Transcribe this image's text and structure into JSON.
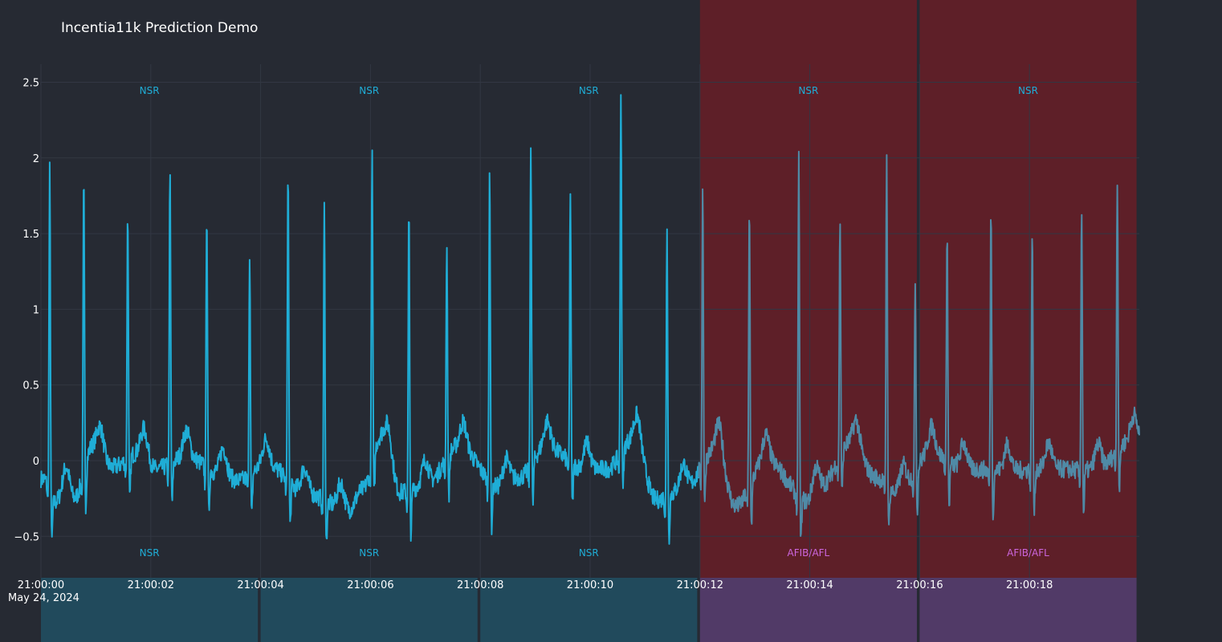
{
  "chart_data": {
    "type": "line",
    "title": "Incentia11k Prediction Demo",
    "xlabel": "",
    "ylabel": "",
    "x_range": [
      0,
      20
    ],
    "ylim": [
      -0.55,
      2.6
    ],
    "y_ticks": [
      {
        "value": -0.5,
        "label": "−0.5"
      },
      {
        "value": 0,
        "label": "0"
      },
      {
        "value": 0.5,
        "label": "0.5"
      },
      {
        "value": 1,
        "label": "1"
      },
      {
        "value": 1.5,
        "label": "1.5"
      },
      {
        "value": 2,
        "label": "2"
      },
      {
        "value": 2.5,
        "label": "2.5"
      }
    ],
    "x_ticks": [
      {
        "value": 0,
        "label": "21:00:00"
      },
      {
        "value": 2,
        "label": "21:00:02"
      },
      {
        "value": 4,
        "label": "21:00:04"
      },
      {
        "value": 6,
        "label": "21:00:06"
      },
      {
        "value": 8,
        "label": "21:00:08"
      },
      {
        "value": 10,
        "label": "21:00:10"
      },
      {
        "value": 12,
        "label": "21:00:12"
      },
      {
        "value": 14,
        "label": "21:00:14"
      },
      {
        "value": 16,
        "label": "21:00:16"
      },
      {
        "value": 18,
        "label": "21:00:18"
      }
    ],
    "x_date_label": "May 24, 2024",
    "grid": true,
    "segments": [
      {
        "start": 0,
        "end": 3.95,
        "top_label": "NSR",
        "bottom_label": "NSR",
        "bottom_alert": false,
        "shaded": false
      },
      {
        "start": 4.0,
        "end": 7.95,
        "top_label": "NSR",
        "bottom_label": "NSR",
        "bottom_alert": false,
        "shaded": false
      },
      {
        "start": 8.0,
        "end": 11.95,
        "top_label": "NSR",
        "bottom_label": "NSR",
        "bottom_alert": false,
        "shaded": false
      },
      {
        "start": 12.0,
        "end": 15.95,
        "top_label": "NSR",
        "bottom_label": "AFIB/AFL",
        "bottom_alert": true,
        "shaded": true
      },
      {
        "start": 16.0,
        "end": 19.95,
        "top_label": "NSR",
        "bottom_label": "AFIB/AFL",
        "bottom_alert": true,
        "shaded": true
      }
    ],
    "r_peaks": [
      {
        "t": 0.16,
        "amp": 2.15
      },
      {
        "t": 0.78,
        "amp": 1.94
      },
      {
        "t": 1.58,
        "amp": 1.67
      },
      {
        "t": 2.35,
        "amp": 1.94
      },
      {
        "t": 3.02,
        "amp": 1.74
      },
      {
        "t": 3.8,
        "amp": 1.5
      },
      {
        "t": 4.5,
        "amp": 2.11
      },
      {
        "t": 5.16,
        "amp": 1.96
      },
      {
        "t": 6.03,
        "amp": 2.05
      },
      {
        "t": 6.7,
        "amp": 1.88
      },
      {
        "t": 7.39,
        "amp": 1.45
      },
      {
        "t": 8.17,
        "amp": 2.12
      },
      {
        "t": 8.92,
        "amp": 2.17
      },
      {
        "t": 9.64,
        "amp": 1.83
      },
      {
        "t": 10.56,
        "amp": 2.44
      },
      {
        "t": 11.4,
        "amp": 1.77
      },
      {
        "t": 12.05,
        "amp": 1.84
      },
      {
        "t": 12.9,
        "amp": 1.87
      },
      {
        "t": 13.8,
        "amp": 2.26
      },
      {
        "t": 14.55,
        "amp": 1.59
      },
      {
        "t": 15.4,
        "amp": 2.24
      },
      {
        "t": 15.92,
        "amp": 1.29
      },
      {
        "t": 16.5,
        "amp": 1.56
      },
      {
        "t": 17.3,
        "amp": 1.74
      },
      {
        "t": 18.05,
        "amp": 1.62
      },
      {
        "t": 18.95,
        "amp": 1.77
      },
      {
        "t": 19.6,
        "amp": 1.83
      }
    ],
    "baseline_noise": [
      {
        "t": 0.05,
        "v": -0.22
      },
      {
        "t": 0.25,
        "v": -0.5
      },
      {
        "t": 0.45,
        "v": -0.38
      },
      {
        "t": 0.6,
        "v": -0.46
      },
      {
        "t": 0.95,
        "v": 0.18
      },
      {
        "t": 1.3,
        "v": -0.08
      },
      {
        "t": 1.8,
        "v": 0.1
      },
      {
        "t": 2.1,
        "v": -0.1
      },
      {
        "t": 2.65,
        "v": 0.05
      },
      {
        "t": 3.25,
        "v": -0.15
      },
      {
        "t": 3.6,
        "v": -0.24
      },
      {
        "t": 4.1,
        "v": -0.05
      },
      {
        "t": 4.85,
        "v": -0.4
      },
      {
        "t": 5.6,
        "v": -0.6
      },
      {
        "t": 5.85,
        "v": -0.35
      },
      {
        "t": 6.2,
        "v": 0.3
      },
      {
        "t": 6.55,
        "v": -0.38
      },
      {
        "t": 7.0,
        "v": -0.3
      },
      {
        "t": 7.6,
        "v": 0.17
      },
      {
        "t": 8.35,
        "v": -0.32
      },
      {
        "t": 8.7,
        "v": -0.2
      },
      {
        "t": 9.2,
        "v": 0.16
      },
      {
        "t": 9.9,
        "v": -0.1
      },
      {
        "t": 10.3,
        "v": -0.1
      },
      {
        "t": 10.8,
        "v": 0.27
      },
      {
        "t": 11.2,
        "v": -0.47
      },
      {
        "t": 11.7,
        "v": -0.35
      },
      {
        "t": 12.3,
        "v": 0.15
      },
      {
        "t": 12.65,
        "v": -0.55
      },
      {
        "t": 13.2,
        "v": 0.0
      },
      {
        "t": 14.0,
        "v": -0.5
      },
      {
        "t": 14.2,
        "v": -0.3
      },
      {
        "t": 14.75,
        "v": 0.22
      },
      {
        "t": 15.2,
        "v": -0.2
      },
      {
        "t": 15.6,
        "v": -0.4
      },
      {
        "t": 16.2,
        "v": 0.1
      },
      {
        "t": 16.8,
        "v": -0.1
      },
      {
        "t": 17.6,
        "v": -0.12
      },
      {
        "t": 18.4,
        "v": -0.1
      },
      {
        "t": 19.2,
        "v": -0.12
      },
      {
        "t": 19.85,
        "v": 0.24
      }
    ],
    "colors": {
      "background": "#262a33",
      "grid": "#323743",
      "signal": "#1fadd6",
      "signal_shaded": "#4f8aa6",
      "shade": "#5e1f28",
      "normal_band": "#214a5c",
      "alert_band": "#513a67",
      "top_label": "#1fadd6",
      "bottom_label_normal": "#1fadd6",
      "bottom_label_alert": "#cc66dd",
      "tick_text": "#ffffff",
      "title_text": "#ffffff"
    }
  }
}
